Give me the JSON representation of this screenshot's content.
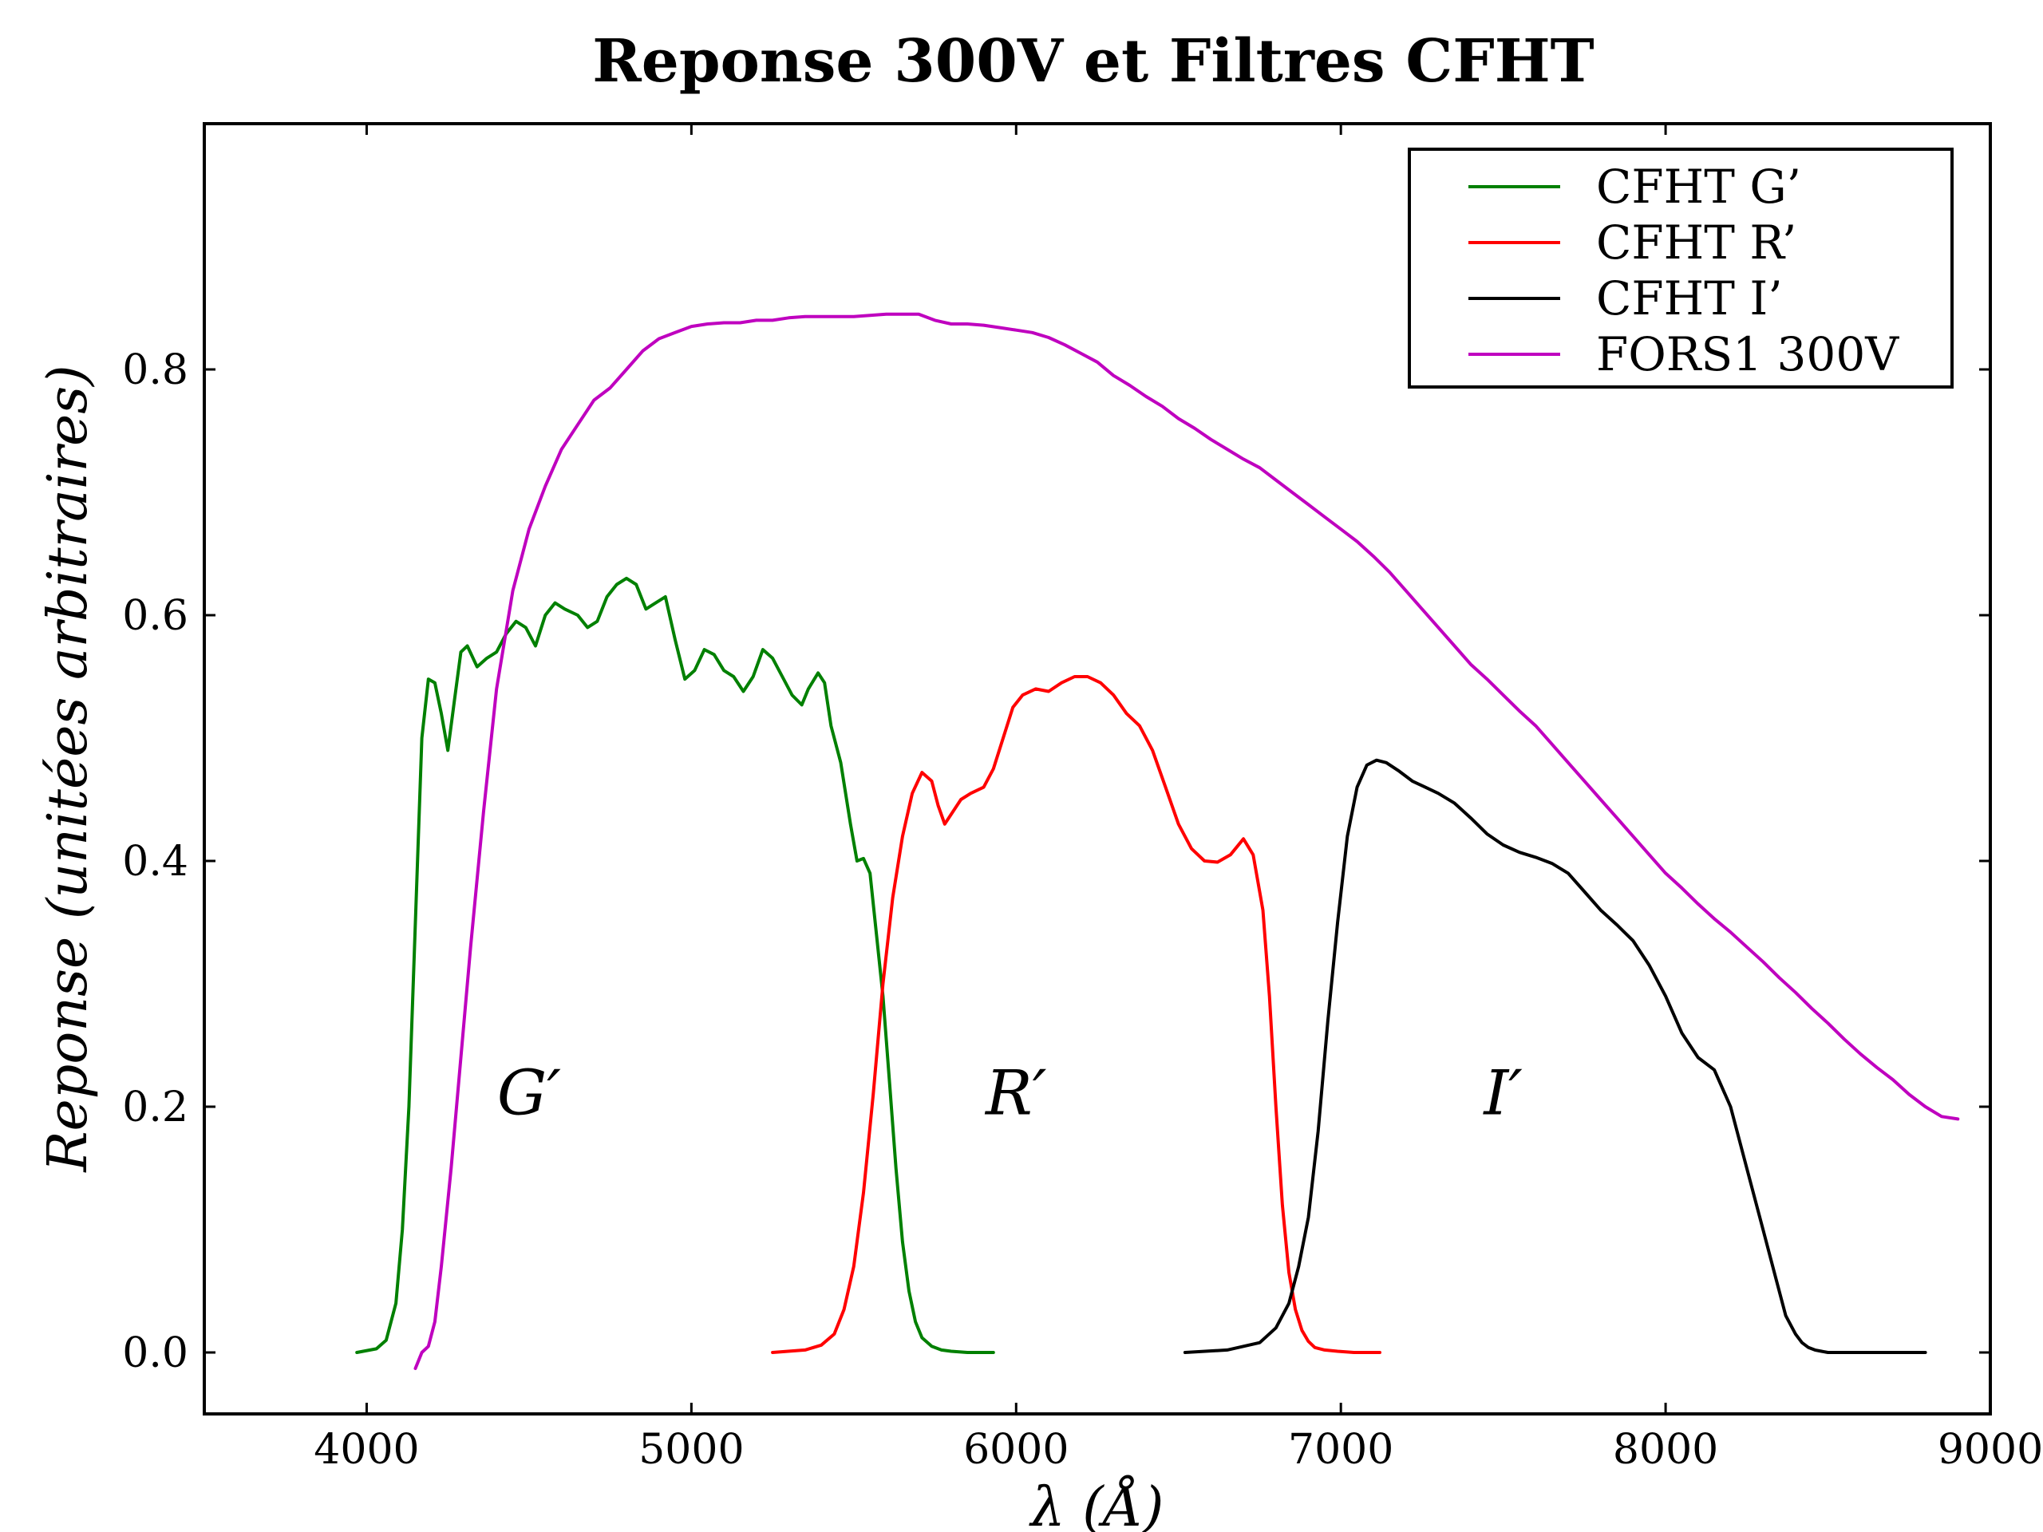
{
  "chart_data": {
    "type": "line",
    "title": "Reponse 300V et Filtres CFHT",
    "xlabel": "λ (Å)",
    "ylabel": "Reponse (unitées arbitraires)",
    "xlim": [
      3500,
      9000
    ],
    "ylim": [
      -0.05,
      1.0
    ],
    "xticks": [
      4000,
      5000,
      6000,
      7000,
      8000,
      9000
    ],
    "xtick_labels": [
      "4000",
      "5000",
      "6000",
      "7000",
      "8000",
      "9000"
    ],
    "yticks": [
      0.0,
      0.2,
      0.4,
      0.6,
      0.8
    ],
    "ytick_labels": [
      "0.0",
      "0.2",
      "0.4",
      "0.6",
      "0.8"
    ],
    "legend_position": "top-right",
    "annotations": [
      {
        "text": "G′",
        "x": 4500,
        "y": 0.21
      },
      {
        "text": "R′",
        "x": 6000,
        "y": 0.21
      },
      {
        "text": "I′",
        "x": 7500,
        "y": 0.21
      }
    ],
    "series": [
      {
        "name": "CFHT G’",
        "color": "#008000",
        "x": [
          3970,
          4030,
          4060,
          4090,
          4110,
          4130,
          4150,
          4170,
          4190,
          4210,
          4230,
          4250,
          4270,
          4290,
          4310,
          4340,
          4370,
          4400,
          4430,
          4460,
          4490,
          4520,
          4550,
          4580,
          4610,
          4650,
          4680,
          4710,
          4740,
          4770,
          4800,
          4830,
          4860,
          4890,
          4920,
          4950,
          4980,
          5010,
          5040,
          5070,
          5100,
          5130,
          5160,
          5190,
          5220,
          5250,
          5280,
          5310,
          5340,
          5360,
          5390,
          5410,
          5430,
          5460,
          5490,
          5510,
          5530,
          5550,
          5570,
          5590,
          5610,
          5630,
          5650,
          5670,
          5690,
          5710,
          5740,
          5770,
          5800,
          5850,
          5930
        ],
        "y": [
          0.0,
          0.003,
          0.01,
          0.04,
          0.1,
          0.2,
          0.35,
          0.5,
          0.548,
          0.545,
          0.52,
          0.49,
          0.53,
          0.57,
          0.575,
          0.558,
          0.565,
          0.57,
          0.585,
          0.595,
          0.59,
          0.575,
          0.6,
          0.61,
          0.605,
          0.6,
          0.59,
          0.595,
          0.615,
          0.625,
          0.63,
          0.625,
          0.605,
          0.61,
          0.615,
          0.58,
          0.548,
          0.555,
          0.572,
          0.568,
          0.555,
          0.55,
          0.538,
          0.55,
          0.572,
          0.565,
          0.55,
          0.535,
          0.527,
          0.54,
          0.553,
          0.545,
          0.51,
          0.48,
          0.43,
          0.4,
          0.402,
          0.39,
          0.34,
          0.29,
          0.22,
          0.15,
          0.09,
          0.05,
          0.025,
          0.012,
          0.005,
          0.002,
          0.001,
          0.0,
          0.0
        ]
      },
      {
        "name": "CFHT R’",
        "color": "#ff0000",
        "x": [
          5250,
          5350,
          5400,
          5440,
          5470,
          5500,
          5530,
          5560,
          5590,
          5620,
          5650,
          5680,
          5710,
          5740,
          5760,
          5780,
          5800,
          5830,
          5860,
          5900,
          5930,
          5960,
          5990,
          6020,
          6060,
          6100,
          6140,
          6180,
          6220,
          6260,
          6300,
          6340,
          6380,
          6420,
          6460,
          6500,
          6540,
          6580,
          6620,
          6660,
          6700,
          6730,
          6760,
          6780,
          6800,
          6820,
          6840,
          6860,
          6880,
          6900,
          6920,
          6950,
          6990,
          7040,
          7120
        ],
        "y": [
          0.0,
          0.002,
          0.006,
          0.015,
          0.035,
          0.07,
          0.13,
          0.21,
          0.3,
          0.37,
          0.42,
          0.455,
          0.472,
          0.465,
          0.445,
          0.43,
          0.438,
          0.45,
          0.455,
          0.46,
          0.475,
          0.5,
          0.525,
          0.535,
          0.54,
          0.538,
          0.545,
          0.55,
          0.55,
          0.545,
          0.535,
          0.52,
          0.51,
          0.49,
          0.46,
          0.43,
          0.41,
          0.4,
          0.399,
          0.405,
          0.418,
          0.405,
          0.36,
          0.29,
          0.2,
          0.12,
          0.065,
          0.035,
          0.018,
          0.009,
          0.004,
          0.002,
          0.001,
          0.0,
          0.0
        ]
      },
      {
        "name": "CFHT I’",
        "color": "#000000",
        "x": [
          6520,
          6650,
          6750,
          6800,
          6840,
          6870,
          6900,
          6930,
          6960,
          6990,
          7020,
          7050,
          7080,
          7110,
          7140,
          7180,
          7220,
          7260,
          7300,
          7350,
          7400,
          7450,
          7500,
          7550,
          7600,
          7650,
          7700,
          7750,
          7800,
          7850,
          7900,
          7950,
          8000,
          8050,
          8100,
          8150,
          8200,
          8250,
          8300,
          8340,
          8370,
          8400,
          8420,
          8440,
          8460,
          8480,
          8500,
          8530,
          8560,
          8600,
          8650,
          8800
        ],
        "y": [
          0.0,
          0.002,
          0.008,
          0.02,
          0.04,
          0.07,
          0.11,
          0.18,
          0.27,
          0.35,
          0.42,
          0.46,
          0.478,
          0.482,
          0.48,
          0.473,
          0.465,
          0.46,
          0.455,
          0.447,
          0.435,
          0.422,
          0.413,
          0.407,
          0.403,
          0.398,
          0.39,
          0.375,
          0.36,
          0.348,
          0.335,
          0.315,
          0.29,
          0.26,
          0.24,
          0.23,
          0.2,
          0.15,
          0.1,
          0.06,
          0.03,
          0.015,
          0.008,
          0.004,
          0.002,
          0.001,
          0.0,
          0.0,
          0.0,
          0.0,
          0.0,
          0.0
        ],
        "note": ""
      },
      {
        "name": "FORS1 300V",
        "color": "#bf00bf",
        "x": [
          4150,
          4170,
          4190,
          4210,
          4230,
          4260,
          4290,
          4320,
          4360,
          4400,
          4450,
          4500,
          4550,
          4600,
          4650,
          4700,
          4750,
          4800,
          4850,
          4900,
          4950,
          5000,
          5050,
          5100,
          5150,
          5200,
          5250,
          5300,
          5350,
          5400,
          5450,
          5500,
          5550,
          5600,
          5650,
          5700,
          5750,
          5800,
          5850,
          5900,
          5950,
          6000,
          6050,
          6100,
          6150,
          6200,
          6250,
          6300,
          6350,
          6400,
          6450,
          6500,
          6550,
          6600,
          6650,
          6700,
          6750,
          6800,
          6850,
          6900,
          6950,
          7000,
          7050,
          7100,
          7150,
          7200,
          7250,
          7300,
          7350,
          7400,
          7450,
          7500,
          7550,
          7600,
          7650,
          7700,
          7750,
          7800,
          7850,
          7900,
          7950,
          8000,
          8050,
          8100,
          8150,
          8200,
          8250,
          8300,
          8350,
          8400,
          8450,
          8500,
          8550,
          8600,
          8650,
          8700,
          8750,
          8800,
          8850,
          8900
        ],
        "y": [
          -0.013,
          0.0,
          0.005,
          0.025,
          0.07,
          0.15,
          0.24,
          0.33,
          0.44,
          0.54,
          0.62,
          0.67,
          0.705,
          0.735,
          0.755,
          0.775,
          0.785,
          0.8,
          0.815,
          0.825,
          0.83,
          0.835,
          0.837,
          0.838,
          0.838,
          0.84,
          0.84,
          0.842,
          0.843,
          0.843,
          0.843,
          0.843,
          0.844,
          0.845,
          0.845,
          0.845,
          0.84,
          0.837,
          0.837,
          0.836,
          0.834,
          0.832,
          0.83,
          0.826,
          0.82,
          0.813,
          0.806,
          0.795,
          0.787,
          0.778,
          0.77,
          0.76,
          0.752,
          0.743,
          0.735,
          0.727,
          0.72,
          0.71,
          0.7,
          0.69,
          0.68,
          0.67,
          0.66,
          0.648,
          0.635,
          0.62,
          0.605,
          0.59,
          0.575,
          0.56,
          0.548,
          0.535,
          0.522,
          0.51,
          0.495,
          0.48,
          0.465,
          0.45,
          0.435,
          0.42,
          0.405,
          0.39,
          0.378,
          0.365,
          0.353,
          0.342,
          0.33,
          0.318,
          0.305,
          0.293,
          0.28,
          0.268,
          0.255,
          0.243,
          0.232,
          0.222,
          0.21,
          0.2,
          0.192,
          0.19
        ]
      }
    ]
  }
}
